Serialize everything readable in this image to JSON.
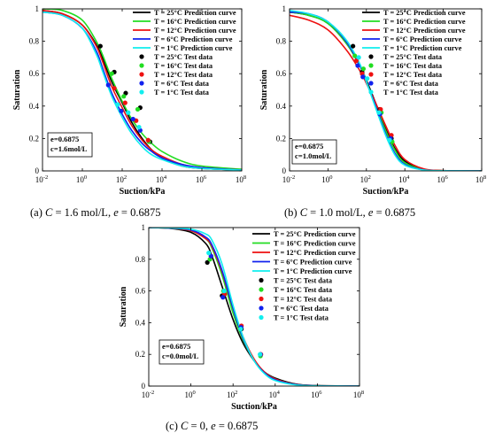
{
  "colors": {
    "T25": "#000000",
    "T16": "#22dd22",
    "T12": "#ee1111",
    "T6": "#1122ee",
    "T1": "#11eeee"
  },
  "chart_data": [
    {
      "type": "line",
      "caption_parts": [
        "(a) ",
        "C",
        " = 1.6 mol/L, ",
        "e",
        " = 0.6875"
      ],
      "annotation": [
        "e=0.6875",
        "c=1.6mol/L"
      ],
      "xlabel": "Suction/kPa",
      "ylabel": "Saturation",
      "xscale": "log",
      "xlim": [
        0.01,
        100000000
      ],
      "ylim": [
        0,
        1
      ],
      "xticks": [
        "10",
        "10",
        "10",
        "10",
        "10",
        "10"
      ],
      "xtick_exponents": [
        "-2",
        "0",
        "2",
        "4",
        "6",
        "8"
      ],
      "yticks": [
        "0",
        "0.2",
        "0.4",
        "0.6",
        "0.8",
        "1"
      ],
      "legend_position": "top-right",
      "series": [
        {
          "name": "T = 25°C Prediction curve",
          "kind": "line",
          "color_key": "T25",
          "x": [
            0.01,
            0.1,
            1,
            5,
            10,
            30,
            100,
            300,
            1000,
            3000,
            10000,
            100000,
            1000000,
            100000000
          ],
          "y": [
            0.99,
            0.97,
            0.9,
            0.78,
            0.7,
            0.55,
            0.42,
            0.3,
            0.2,
            0.13,
            0.08,
            0.03,
            0.015,
            0.005
          ]
        },
        {
          "name": "T = 16°C Prediction curve",
          "kind": "line",
          "color_key": "T16",
          "x": [
            0.01,
            0.1,
            1,
            5,
            10,
            30,
            100,
            300,
            1000,
            3000,
            10000,
            100000,
            1000000,
            100000000
          ],
          "y": [
            1.0,
            0.99,
            0.93,
            0.8,
            0.72,
            0.57,
            0.43,
            0.32,
            0.23,
            0.17,
            0.12,
            0.06,
            0.03,
            0.01
          ]
        },
        {
          "name": "T = 12°C Prediction curve",
          "kind": "line",
          "color_key": "T12",
          "x": [
            0.01,
            0.1,
            1,
            5,
            10,
            30,
            100,
            300,
            1000,
            3000,
            10000,
            100000,
            1000000,
            100000000
          ],
          "y": [
            0.99,
            0.97,
            0.9,
            0.77,
            0.68,
            0.52,
            0.39,
            0.28,
            0.19,
            0.13,
            0.09,
            0.04,
            0.02,
            0.005
          ]
        },
        {
          "name": "T = 6°C Prediction curve",
          "kind": "line",
          "color_key": "T6",
          "x": [
            0.01,
            0.1,
            1,
            5,
            10,
            30,
            100,
            300,
            1000,
            3000,
            10000,
            100000,
            1000000,
            100000000
          ],
          "y": [
            0.98,
            0.96,
            0.88,
            0.74,
            0.64,
            0.48,
            0.35,
            0.25,
            0.17,
            0.12,
            0.08,
            0.04,
            0.02,
            0.005
          ]
        },
        {
          "name": "T = 1°C Prediction curve",
          "kind": "line",
          "color_key": "T1",
          "x": [
            0.01,
            0.1,
            1,
            5,
            10,
            30,
            100,
            300,
            1000,
            3000,
            10000,
            100000,
            1000000,
            100000000
          ],
          "y": [
            0.98,
            0.96,
            0.88,
            0.72,
            0.62,
            0.46,
            0.33,
            0.23,
            0.15,
            0.1,
            0.07,
            0.03,
            0.015,
            0.005
          ]
        },
        {
          "name": "T = 25°C Test data",
          "kind": "points",
          "color_key": "T25",
          "x": [
            8,
            40,
            150,
            800,
            2500
          ],
          "y": [
            0.77,
            0.61,
            0.48,
            0.39,
            0.18
          ]
        },
        {
          "name": "T = 16°C Test data",
          "kind": "points",
          "color_key": "T16",
          "x": [
            30,
            120,
            600,
            2200
          ],
          "y": [
            0.6,
            0.46,
            0.38,
            0.18
          ]
        },
        {
          "name": "T = 12°C Test data",
          "kind": "points",
          "color_key": "T12",
          "x": [
            40,
            140,
            500,
            2000
          ],
          "y": [
            0.51,
            0.42,
            0.31,
            0.19
          ]
        },
        {
          "name": "T = 6°C Test data",
          "kind": "points",
          "color_key": "T6",
          "x": [
            20,
            90,
            350,
            800
          ],
          "y": [
            0.53,
            0.37,
            0.32,
            0.25
          ]
        },
        {
          "name": "T = 1°C Test data",
          "kind": "points",
          "color_key": "T1",
          "x": [
            60,
            200,
            700
          ],
          "y": [
            0.41,
            0.36,
            0.27
          ]
        }
      ]
    },
    {
      "type": "line",
      "caption_parts": [
        "(b) ",
        "C",
        " = 1.0 mol/L, ",
        "e",
        " = 0.6875"
      ],
      "annotation": [
        "e=0.6875",
        "c=1.0mol/L"
      ],
      "xlabel": "Suction/kPa",
      "ylabel": "Saturation",
      "xscale": "log",
      "xlim": [
        0.01,
        100000000
      ],
      "ylim": [
        0,
        1
      ],
      "xticks": [
        "10",
        "10",
        "10",
        "10",
        "10",
        "10"
      ],
      "xtick_exponents": [
        "-2",
        "0",
        "2",
        "4",
        "6",
        "8"
      ],
      "yticks": [
        "0",
        "0.2",
        "0.4",
        "0.6",
        "0.8",
        "1"
      ],
      "legend_position": "top-right",
      "series": [
        {
          "name": "T = 25°C Prediction curve",
          "kind": "line",
          "color_key": "T25",
          "x": [
            0.01,
            0.1,
            1,
            10,
            50,
            100,
            300,
            1000,
            3000,
            10000,
            100000,
            1000000,
            100000000
          ],
          "y": [
            0.98,
            0.96,
            0.91,
            0.78,
            0.64,
            0.56,
            0.42,
            0.26,
            0.14,
            0.06,
            0.01,
            0.002,
            0.0
          ]
        },
        {
          "name": "T = 16°C Prediction curve",
          "kind": "line",
          "color_key": "T16",
          "x": [
            0.01,
            0.1,
            1,
            10,
            50,
            100,
            300,
            1000,
            3000,
            10000,
            100000,
            1000000,
            100000000
          ],
          "y": [
            0.98,
            0.96,
            0.91,
            0.78,
            0.64,
            0.55,
            0.41,
            0.25,
            0.13,
            0.05,
            0.008,
            0.001,
            0.0
          ]
        },
        {
          "name": "T = 12°C Prediction curve",
          "kind": "line",
          "color_key": "T12",
          "x": [
            0.01,
            0.1,
            1,
            10,
            50,
            100,
            300,
            1000,
            3000,
            10000,
            100000,
            1000000,
            100000000
          ],
          "y": [
            0.96,
            0.93,
            0.87,
            0.74,
            0.61,
            0.54,
            0.42,
            0.28,
            0.16,
            0.07,
            0.012,
            0.002,
            0.0
          ]
        },
        {
          "name": "T = 6°C Prediction curve",
          "kind": "line",
          "color_key": "T6",
          "x": [
            0.01,
            0.1,
            1,
            10,
            50,
            100,
            300,
            1000,
            3000,
            10000,
            100000,
            1000000,
            100000000
          ],
          "y": [
            0.98,
            0.97,
            0.92,
            0.79,
            0.64,
            0.55,
            0.4,
            0.23,
            0.11,
            0.04,
            0.006,
            0.001,
            0.0
          ]
        },
        {
          "name": "T = 1°C Prediction curve",
          "kind": "line",
          "color_key": "T1",
          "x": [
            0.01,
            0.1,
            1,
            10,
            50,
            100,
            300,
            1000,
            3000,
            10000,
            100000,
            1000000,
            100000000
          ],
          "y": [
            0.99,
            0.97,
            0.92,
            0.8,
            0.65,
            0.55,
            0.39,
            0.22,
            0.1,
            0.035,
            0.005,
            0.001,
            0.0
          ]
        },
        {
          "name": "T = 25°C Test data",
          "kind": "points",
          "color_key": "T25",
          "x": [
            20,
            60,
            500,
            2000
          ],
          "y": [
            0.77,
            0.61,
            0.38,
            0.2
          ]
        },
        {
          "name": "T = 16°C Test data",
          "kind": "points",
          "color_key": "T16",
          "x": [
            25,
            70,
            600,
            2200
          ],
          "y": [
            0.71,
            0.63,
            0.36,
            0.18
          ]
        },
        {
          "name": "T = 12°C Test data",
          "kind": "points",
          "color_key": "T12",
          "x": [
            30,
            60,
            550,
            2000
          ],
          "y": [
            0.68,
            0.6,
            0.38,
            0.22
          ]
        },
        {
          "name": "T = 6°C Test data",
          "kind": "points",
          "color_key": "T6",
          "x": [
            35,
            65,
            500,
            1800
          ],
          "y": [
            0.65,
            0.58,
            0.35,
            0.2
          ]
        },
        {
          "name": "T = 1°C Test data",
          "kind": "points",
          "color_key": "T1",
          "x": [
            40,
            110,
            450,
            1600
          ],
          "y": [
            0.7,
            0.57,
            0.36,
            0.19
          ]
        }
      ]
    },
    {
      "type": "line",
      "caption_parts": [
        "(c) ",
        "C",
        " = 0, ",
        "e",
        " = 0.6875"
      ],
      "annotation": [
        "e=0.6875",
        "c=0.0mol/L"
      ],
      "xlabel": "Suction/kPa",
      "ylabel": "Saturation",
      "xscale": "log",
      "xlim": [
        0.01,
        100000000
      ],
      "ylim": [
        0,
        1
      ],
      "xticks": [
        "10",
        "10",
        "10",
        "10",
        "10",
        "10"
      ],
      "xtick_exponents": [
        "-2",
        "0",
        "2",
        "4",
        "6",
        "8"
      ],
      "yticks": [
        "0",
        "0.2",
        "0.4",
        "0.6",
        "0.8",
        "1"
      ],
      "legend_position": "top-right",
      "series": [
        {
          "name": "T = 25°C Prediction curve",
          "kind": "line",
          "color_key": "T25",
          "x": [
            0.01,
            0.1,
            1,
            5,
            10,
            30,
            100,
            300,
            1000,
            3000,
            10000,
            100000,
            1000000,
            100000000
          ],
          "y": [
            1.0,
            0.995,
            0.97,
            0.9,
            0.82,
            0.63,
            0.42,
            0.27,
            0.16,
            0.09,
            0.05,
            0.012,
            0.003,
            0.0
          ]
        },
        {
          "name": "T = 16°C Prediction curve",
          "kind": "line",
          "color_key": "T16",
          "x": [
            0.01,
            0.1,
            1,
            5,
            10,
            30,
            100,
            300,
            1000,
            3000,
            10000,
            100000,
            1000000,
            100000000
          ],
          "y": [
            1.0,
            0.996,
            0.98,
            0.93,
            0.87,
            0.7,
            0.46,
            0.29,
            0.16,
            0.09,
            0.045,
            0.01,
            0.002,
            0.0
          ]
        },
        {
          "name": "T = 12°C Prediction curve",
          "kind": "line",
          "color_key": "T12",
          "x": [
            0.01,
            0.1,
            1,
            5,
            10,
            30,
            100,
            300,
            1000,
            3000,
            10000,
            100000,
            1000000,
            100000000
          ],
          "y": [
            1.0,
            0.996,
            0.98,
            0.93,
            0.88,
            0.72,
            0.49,
            0.31,
            0.17,
            0.09,
            0.045,
            0.01,
            0.002,
            0.0
          ]
        },
        {
          "name": "T = 6°C Prediction curve",
          "kind": "line",
          "color_key": "T6",
          "x": [
            0.01,
            0.1,
            1,
            5,
            10,
            30,
            100,
            300,
            1000,
            3000,
            10000,
            100000,
            1000000,
            100000000
          ],
          "y": [
            1.0,
            0.997,
            0.985,
            0.94,
            0.89,
            0.73,
            0.49,
            0.3,
            0.16,
            0.085,
            0.04,
            0.009,
            0.002,
            0.0
          ]
        },
        {
          "name": "T = 1°C Prediction curve",
          "kind": "line",
          "color_key": "T1",
          "x": [
            0.01,
            0.1,
            1,
            5,
            10,
            30,
            100,
            300,
            1000,
            3000,
            10000,
            100000,
            1000000,
            100000000
          ],
          "y": [
            1.0,
            0.998,
            0.99,
            0.96,
            0.92,
            0.77,
            0.51,
            0.31,
            0.16,
            0.08,
            0.035,
            0.007,
            0.001,
            0.0
          ]
        },
        {
          "name": "T = 25°C Test data",
          "kind": "points",
          "color_key": "T25",
          "x": [
            6,
            30,
            250,
            2000
          ],
          "y": [
            0.78,
            0.57,
            0.36,
            0.2
          ]
        },
        {
          "name": "T = 16°C Test data",
          "kind": "points",
          "color_key": "T16",
          "x": [
            8,
            35,
            220,
            2000
          ],
          "y": [
            0.8,
            0.6,
            0.36,
            0.19
          ]
        },
        {
          "name": "T = 12°C Test data",
          "kind": "points",
          "color_key": "T12",
          "x": [
            9,
            40,
            250,
            2100
          ],
          "y": [
            0.82,
            0.58,
            0.38,
            0.2
          ]
        },
        {
          "name": "T = 6°C Test data",
          "kind": "points",
          "color_key": "T6",
          "x": [
            9,
            33,
            240,
            2000
          ],
          "y": [
            0.82,
            0.56,
            0.37,
            0.2
          ]
        },
        {
          "name": "T = 1°C Test data",
          "kind": "points",
          "color_key": "T1",
          "x": [
            7,
            38,
            230,
            1900
          ],
          "y": [
            0.84,
            0.6,
            0.36,
            0.2
          ]
        }
      ]
    }
  ]
}
